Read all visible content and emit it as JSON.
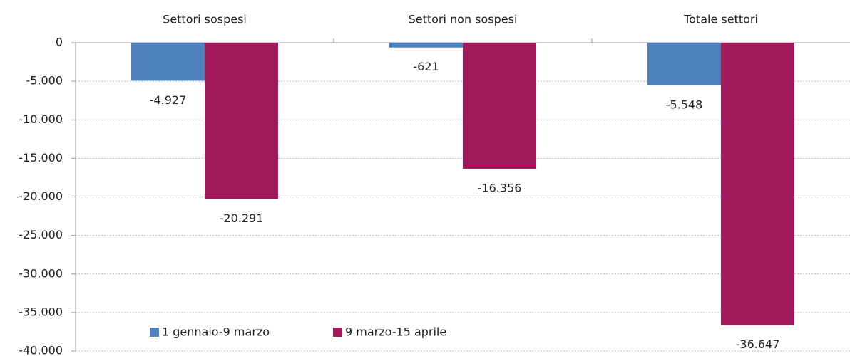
{
  "chart_data": {
    "type": "bar",
    "categories": [
      "Settori sospesi",
      "Settori non sospesi",
      "Totale settori"
    ],
    "series": [
      {
        "name": "1 gennaio-9 marzo",
        "color": "#4f81bd",
        "values": [
          -4927,
          -621,
          -5548
        ],
        "value_labels": [
          "-4.927",
          "-621",
          "-5.548"
        ]
      },
      {
        "name": "9 marzo-15 aprile",
        "color": "#a0195b",
        "values": [
          -20291,
          -16356,
          -36647
        ],
        "value_labels": [
          "-20.291",
          "-16.356",
          "-36.647"
        ]
      }
    ],
    "ylim": [
      -40000,
      0
    ],
    "yticks": [
      0,
      {
        "value": -5000,
        "label": "-5.000"
      },
      {
        "value": -10000,
        "label": "-10.000"
      },
      {
        "value": -15000,
        "label": "-15.000"
      },
      {
        "value": -20000,
        "label": "-20.000"
      },
      {
        "value": -25000,
        "label": "-25.000"
      },
      {
        "value": -30000,
        "label": "-30.000"
      },
      {
        "value": -35000,
        "label": "-35.000"
      },
      {
        "value": -40000,
        "label": "-40.000"
      }
    ],
    "grid": true
  }
}
